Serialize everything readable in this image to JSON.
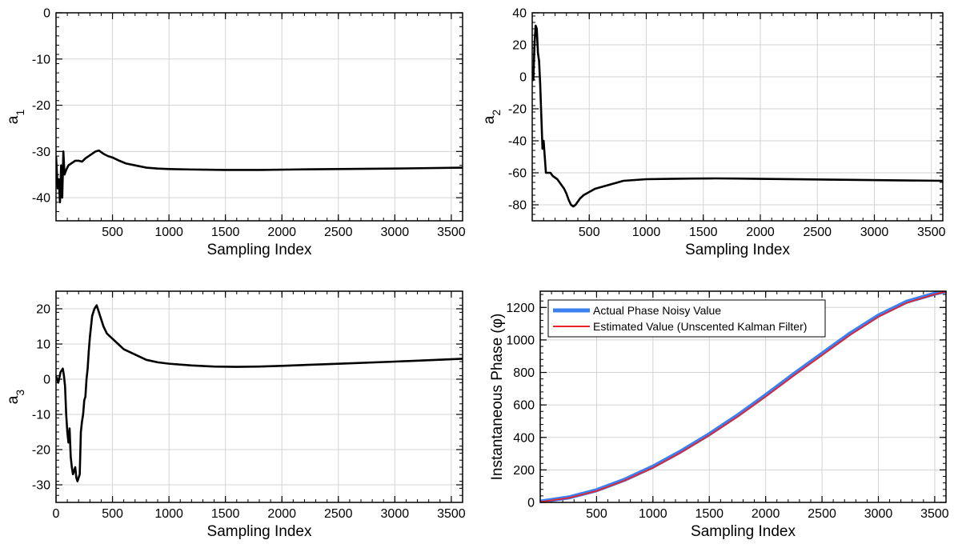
{
  "colors": {
    "line": "#000000",
    "grid": "#d3d3d3",
    "actual": "#3b7ff0",
    "estimated": "#e8222a"
  },
  "chart_data": [
    {
      "type": "line",
      "xlabel": "Sampling Index",
      "ylabel_main": "a",
      "ylabel_sub": "1",
      "xlim": [
        0,
        3600
      ],
      "ylim": [
        -45,
        0
      ],
      "xticks": [
        500,
        1000,
        1500,
        2000,
        2500,
        3000,
        3500
      ],
      "yticks": [
        -40,
        -30,
        -20,
        -10,
        0
      ],
      "grid": true,
      "series": [
        {
          "x": [
            0,
            15,
            25,
            35,
            45,
            55,
            65,
            75,
            90,
            110,
            140,
            170,
            200,
            230,
            260,
            290,
            320,
            350,
            380,
            420,
            460,
            500,
            560,
            620,
            700,
            800,
            900,
            1000,
            1200,
            1500,
            1800,
            2100,
            2500,
            3000,
            3600
          ],
          "y": [
            -31,
            -38,
            -36,
            -41,
            -33,
            -40,
            -30,
            -35,
            -34,
            -33,
            -32.5,
            -32,
            -32,
            -32.2,
            -31.5,
            -31,
            -30.5,
            -30,
            -29.8,
            -30.5,
            -31,
            -31.3,
            -32,
            -32.6,
            -33,
            -33.5,
            -33.7,
            -33.8,
            -33.9,
            -34,
            -34,
            -33.9,
            -33.8,
            -33.7,
            -33.5
          ]
        }
      ]
    },
    {
      "type": "line",
      "xlabel": "Sampling Index",
      "ylabel_main": "a",
      "ylabel_sub": "2",
      "xlim": [
        0,
        3600
      ],
      "ylim": [
        -90,
        40
      ],
      "xticks": [
        500,
        1000,
        1500,
        2000,
        2500,
        3000,
        3500
      ],
      "yticks": [
        -80,
        -60,
        -40,
        -20,
        0,
        20,
        40
      ],
      "grid": true,
      "series": [
        {
          "x": [
            0,
            10,
            20,
            30,
            40,
            50,
            60,
            70,
            80,
            90,
            100,
            110,
            120,
            140,
            160,
            180,
            200,
            220,
            240,
            260,
            280,
            300,
            320,
            340,
            360,
            380,
            400,
            420,
            450,
            500,
            550,
            600,
            700,
            800,
            900,
            1000,
            1200,
            1400,
            1600,
            1800,
            2000,
            2400,
            2800,
            3200,
            3600
          ],
          "y": [
            0,
            -2,
            20,
            32,
            30,
            15,
            10,
            -5,
            -25,
            -45,
            -40,
            -50,
            -60,
            -60,
            -60,
            -62,
            -63,
            -64,
            -66,
            -68,
            -70,
            -73,
            -77,
            -80,
            -81,
            -80,
            -78,
            -76,
            -74,
            -72,
            -70,
            -69,
            -67,
            -65,
            -64.5,
            -64,
            -63.8,
            -63.6,
            -63.5,
            -63.6,
            -63.8,
            -64.1,
            -64.4,
            -64.7,
            -65
          ]
        }
      ]
    },
    {
      "type": "line",
      "xlabel": "Sampling Index",
      "ylabel_main": "a",
      "ylabel_sub": "3",
      "xlim": [
        0,
        3600
      ],
      "ylim": [
        -35,
        25
      ],
      "xticks": [
        0,
        500,
        1000,
        1500,
        2000,
        2500,
        3000,
        3500
      ],
      "yticks": [
        -30,
        -20,
        -10,
        0,
        10,
        20
      ],
      "grid": true,
      "series": [
        {
          "x": [
            0,
            20,
            40,
            60,
            70,
            80,
            90,
            100,
            110,
            120,
            130,
            140,
            150,
            160,
            170,
            180,
            190,
            200,
            210,
            220,
            230,
            240,
            250,
            260,
            270,
            280,
            290,
            300,
            320,
            340,
            360,
            380,
            400,
            420,
            450,
            500,
            550,
            600,
            700,
            800,
            900,
            1000,
            1200,
            1400,
            1600,
            1800,
            2000,
            2500,
            3000,
            3600
          ],
          "y": [
            1,
            -1,
            2,
            3,
            1,
            -2,
            -10,
            -15,
            -18,
            -14,
            -22,
            -25,
            -27,
            -26,
            -25,
            -28,
            -29,
            -28,
            -27,
            -15,
            -12,
            -10,
            -6,
            -5,
            0,
            3,
            8,
            12,
            18,
            20,
            21,
            19,
            17,
            15,
            13,
            11.5,
            10,
            8.5,
            7,
            5.5,
            4.8,
            4.4,
            3.9,
            3.6,
            3.5,
            3.6,
            3.8,
            4.4,
            5,
            5.8
          ]
        }
      ]
    },
    {
      "type": "line",
      "xlabel": "Sampling Index",
      "ylabel": "Instantaneous Phase (φ)",
      "xlim": [
        0,
        3600
      ],
      "ylim": [
        0,
        1300
      ],
      "xticks": [
        500,
        1000,
        1500,
        2000,
        2500,
        3000,
        3500
      ],
      "yticks": [
        0,
        200,
        400,
        600,
        800,
        1000,
        1200
      ],
      "grid": true,
      "legend": "top-left",
      "series": [
        {
          "name": "Actual Phase Noisy Value",
          "x": [
            0,
            250,
            500,
            750,
            1000,
            1250,
            1500,
            1750,
            2000,
            2250,
            2500,
            2750,
            3000,
            3250,
            3500,
            3600
          ],
          "y": [
            5,
            30,
            75,
            140,
            220,
            315,
            420,
            535,
            660,
            790,
            915,
            1040,
            1150,
            1235,
            1285,
            1300
          ]
        },
        {
          "name": "Estimated Value (Unscented Kalman Filter)",
          "x": [
            0,
            250,
            500,
            750,
            1000,
            1250,
            1500,
            1750,
            2000,
            2250,
            2500,
            2750,
            3000,
            3250,
            3500,
            3600
          ],
          "y": [
            3,
            27,
            70,
            135,
            213,
            308,
            413,
            527,
            651,
            781,
            906,
            1031,
            1142,
            1228,
            1281,
            1298
          ]
        }
      ]
    }
  ]
}
